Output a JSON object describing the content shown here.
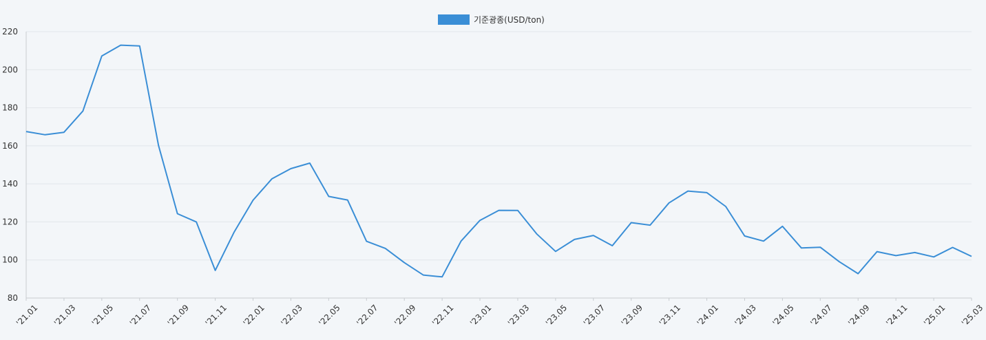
{
  "chart_data": {
    "type": "line",
    "legend": {
      "label": "기준광종(USD/ton)",
      "position": "top-center"
    },
    "colors": {
      "line": "#3a8ed6",
      "legend_box": "#3a8ed6",
      "grid": "#e2e6ea",
      "axis": "#c8ccd0"
    },
    "grid": true,
    "ylim": [
      80,
      220
    ],
    "yticks": [
      80,
      100,
      120,
      140,
      160,
      180,
      200,
      220
    ],
    "x": [
      "'21.01",
      "'21.02",
      "'21.03",
      "'21.04",
      "'21.05",
      "'21.06",
      "'21.07",
      "'21.08",
      "'21.09",
      "'21.10",
      "'21.11",
      "'21.12",
      "'22.01",
      "'22.02",
      "'22.03",
      "'22.04",
      "'22.05",
      "'22.06",
      "'22.07",
      "'22.08",
      "'22.09",
      "'22.10",
      "'22.11",
      "'22.12",
      "'23.01",
      "'23.02",
      "'23.03",
      "'23.04",
      "'23.05",
      "'23.06",
      "'23.07",
      "'23.08",
      "'23.09",
      "'23.10",
      "'23.11",
      "'23.12",
      "'24.01",
      "'24.02",
      "'24.03",
      "'24.04",
      "'24.05",
      "'24.06",
      "'24.07",
      "'24.08",
      "'24.09",
      "'24.10",
      "'24.11",
      "'24.12",
      "'25.01",
      "'25.02",
      "'25.03"
    ],
    "xtick_labels": [
      "'21.01",
      "'21.03",
      "'21.05",
      "'21.07",
      "'21.09",
      "'21.11",
      "'22.01",
      "'22.03",
      "'22.05",
      "'22.07",
      "'22.09",
      "'22.11",
      "'23.01",
      "'23.03",
      "'23.05",
      "'23.07",
      "'23.09",
      "'23.11",
      "'24.01",
      "'24.03",
      "'24.05",
      "'24.07",
      "'24.09",
      "'24.11",
      "'25.01",
      "'25.03"
    ],
    "series": [
      {
        "name": "기준광종(USD/ton)",
        "values": [
          167.5,
          165.8,
          167.1,
          178.3,
          207.2,
          212.9,
          212.5,
          160.2,
          124.3,
          120.0,
          94.5,
          114.7,
          131.4,
          142.7,
          148.0,
          150.9,
          133.4,
          131.5,
          109.8,
          106.1,
          98.6,
          92.1,
          91.1,
          109.9,
          120.8,
          126.1,
          126.0,
          113.7,
          104.5,
          110.8,
          112.9,
          107.5,
          119.6,
          118.3,
          130.0,
          136.2,
          135.4,
          128.1,
          112.6,
          109.9,
          117.7,
          106.3,
          106.7,
          99.1,
          92.8,
          104.4,
          102.3,
          103.9,
          101.6,
          106.6,
          101.9
        ]
      }
    ]
  }
}
